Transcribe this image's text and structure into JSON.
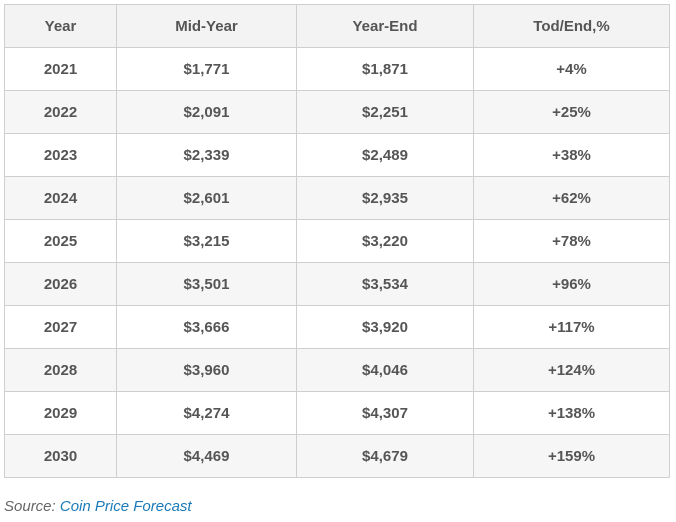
{
  "table": {
    "headers": [
      "Year",
      "Mid-Year",
      "Year-End",
      "Tod/End,%"
    ],
    "rows": [
      [
        "2021",
        "$1,771",
        "$1,871",
        "+4%"
      ],
      [
        "2022",
        "$2,091",
        "$2,251",
        "+25%"
      ],
      [
        "2023",
        "$2,339",
        "$2,489",
        "+38%"
      ],
      [
        "2024",
        "$2,601",
        "$2,935",
        "+62%"
      ],
      [
        "2025",
        "$3,215",
        "$3,220",
        "+78%"
      ],
      [
        "2026",
        "$3,501",
        "$3,534",
        "+96%"
      ],
      [
        "2027",
        "$3,666",
        "$3,920",
        "+117%"
      ],
      [
        "2028",
        "$3,960",
        "$4,046",
        "+124%"
      ],
      [
        "2029",
        "$4,274",
        "$4,307",
        "+138%"
      ],
      [
        "2030",
        "$4,469",
        "$4,679",
        "+159%"
      ]
    ]
  },
  "source": {
    "prefix": "Source:",
    "link_text": "Coin Price Forecast"
  }
}
